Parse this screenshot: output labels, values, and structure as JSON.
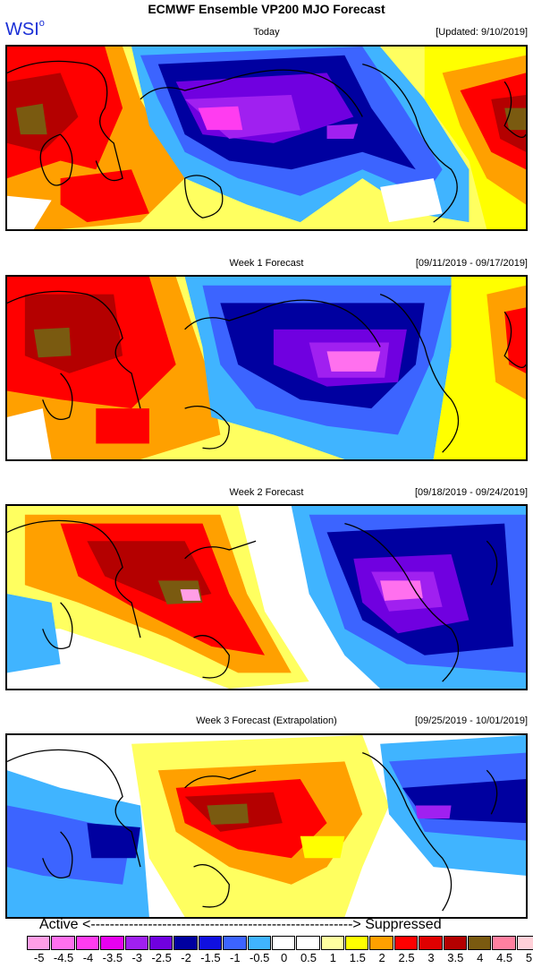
{
  "header": {
    "title": "ECMWF Ensemble VP200 MJO Forecast",
    "logo": "WSI",
    "logo_mark": "o"
  },
  "panels": [
    {
      "title": "Today",
      "date": "[Updated: 9/10/2019]"
    },
    {
      "title": "Week 1 Forecast",
      "date": "[09/11/2019 - 09/17/2019]"
    },
    {
      "title": "Week 2 Forecast",
      "date": "[09/18/2019 - 09/24/2019]"
    },
    {
      "title": "Week 3 Forecast (Extrapolation)",
      "date": "[09/25/2019 - 10/01/2019]"
    }
  ],
  "legend": {
    "left_label": "Active <-------------------------------------------------------> Suppressed",
    "right_label": "",
    "levels": [
      "-5",
      "-4.5",
      "-4",
      "-3.5",
      "-3",
      "-2.5",
      "-2",
      "-1.5",
      "-1",
      "-0.5",
      "0",
      "0.5",
      "1",
      "1.5",
      "2",
      "2.5",
      "3",
      "3.5",
      "4",
      "4.5",
      "5"
    ],
    "colors": [
      "#ff9ee6",
      "#ff70ee",
      "#ff3cf0",
      "#e800f0",
      "#a020f0",
      "#7000e0",
      "#0000a0",
      "#1010e0",
      "#3c64ff",
      "#40b4ff",
      "#ffffff",
      "#ffffff",
      "#ffffa0",
      "#ffff00",
      "#ffa000",
      "#ff0000",
      "#e00000",
      "#b40000",
      "#7a5a10",
      "#ff80a0",
      "#ffd0d8"
    ]
  }
}
